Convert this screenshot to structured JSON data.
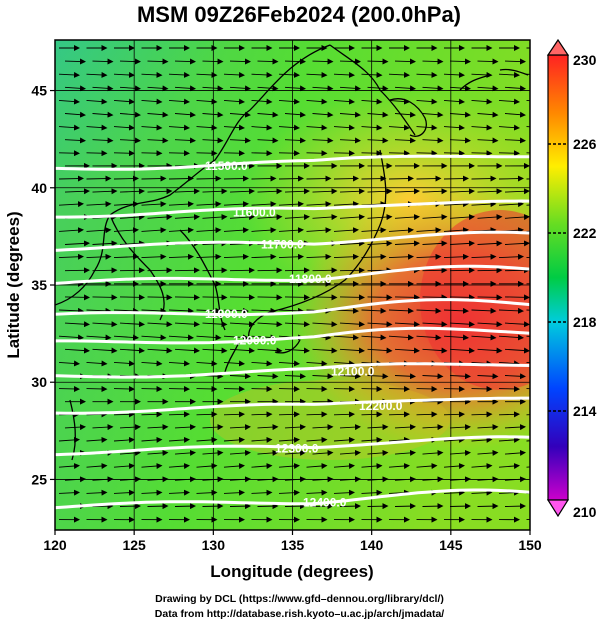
{
  "title": "MSM 09Z26Feb2024 (200.0hPa)",
  "x_axis": {
    "label": "Longitude (degrees)",
    "ticks": [
      120,
      125,
      130,
      135,
      140,
      145,
      150
    ],
    "range": [
      120,
      150
    ]
  },
  "y_axis": {
    "label": "Latitude  (degrees)",
    "ticks": [
      25,
      30,
      35,
      40,
      45
    ],
    "range": [
      22.4,
      47.6
    ]
  },
  "colorbar": {
    "ticks": [
      230,
      226,
      222,
      218,
      214,
      210
    ],
    "range": [
      210,
      230
    ]
  },
  "contours": [
    {
      "label": "11500.0",
      "lat": 41.0
    },
    {
      "label": "11600.0",
      "lat": 38.6
    },
    {
      "label": "11700.0",
      "lat": 36.9
    },
    {
      "label": "11800.0",
      "lat": 35.1
    },
    {
      "label": "11900.0",
      "lat": 33.4
    },
    {
      "label": "12000.0",
      "lat": 32.0
    },
    {
      "label": "12100.0",
      "lat": 30.3
    },
    {
      "label": "12200.0",
      "lat": 28.5
    },
    {
      "label": "12300.0",
      "lat": 26.4
    },
    {
      "label": "12400.0",
      "lat": 23.6
    }
  ],
  "credits": {
    "line1": "Drawing by DCL (https://www.gfd–dennou.org/library/dcl/)",
    "line2": "Data from http://database.rish.kyoto–u.ac.jp/arch/jmadata/"
  }
}
